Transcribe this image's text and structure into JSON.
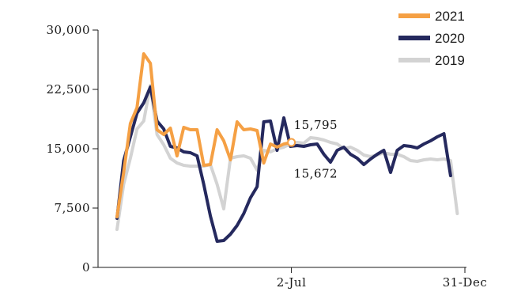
{
  "chart_data": {
    "type": "line",
    "title": "",
    "xlabel": "",
    "ylabel": "",
    "ylim": [
      0,
      30000
    ],
    "y_ticks": [
      {
        "value": 0,
        "label": "0"
      },
      {
        "value": 7500,
        "label": "7,500"
      },
      {
        "value": 15000,
        "label": "15,000"
      },
      {
        "value": 22500,
        "label": "22,500"
      },
      {
        "value": 30000,
        "label": "30,000"
      }
    ],
    "x_axis": {
      "unit": "day of year",
      "range": [
        1,
        366
      ]
    },
    "x_ticks": [
      {
        "value": 184,
        "label": "2-Jul"
      },
      {
        "value": 366,
        "label": "31-Dec"
      }
    ],
    "grid": false,
    "legend_placement": "top-right",
    "legend": [
      {
        "label": "2021",
        "color": "#F5A044"
      },
      {
        "label": "2020",
        "color": "#25295E"
      },
      {
        "label": "2019",
        "color": "#D3D3D3"
      }
    ],
    "series": [
      {
        "name": "2019",
        "color": "#D3D3D3",
        "points": [
          [
            1,
            4800
          ],
          [
            8,
            10500
          ],
          [
            15,
            13800
          ],
          [
            22,
            17500
          ],
          [
            29,
            18500
          ],
          [
            36,
            23000
          ],
          [
            43,
            16800
          ],
          [
            50,
            15500
          ],
          [
            57,
            13800
          ],
          [
            64,
            13200
          ],
          [
            71,
            12900
          ],
          [
            78,
            12800
          ],
          [
            85,
            12800
          ],
          [
            92,
            12800
          ],
          [
            99,
            13000
          ],
          [
            106,
            10500
          ],
          [
            113,
            7400
          ],
          [
            120,
            13800
          ],
          [
            127,
            14000
          ],
          [
            134,
            14100
          ],
          [
            141,
            13800
          ],
          [
            148,
            12300
          ],
          [
            155,
            14800
          ],
          [
            162,
            14600
          ],
          [
            169,
            15000
          ],
          [
            176,
            15200
          ],
          [
            183,
            15600
          ],
          [
            190,
            15800
          ],
          [
            197,
            15700
          ],
          [
            204,
            16400
          ],
          [
            211,
            16300
          ],
          [
            218,
            16100
          ],
          [
            225,
            15800
          ],
          [
            232,
            15600
          ],
          [
            239,
            15000
          ],
          [
            246,
            15200
          ],
          [
            253,
            14800
          ],
          [
            260,
            14200
          ],
          [
            267,
            14000
          ],
          [
            274,
            14200
          ],
          [
            281,
            14500
          ],
          [
            288,
            14300
          ],
          [
            295,
            14300
          ],
          [
            302,
            14000
          ],
          [
            309,
            13500
          ],
          [
            316,
            13400
          ],
          [
            323,
            13600
          ],
          [
            330,
            13700
          ],
          [
            337,
            13600
          ],
          [
            344,
            13700
          ],
          [
            351,
            13500
          ],
          [
            358,
            6800
          ]
        ]
      },
      {
        "name": "2020",
        "color": "#25295E",
        "points": [
          [
            1,
            6200
          ],
          [
            8,
            13500
          ],
          [
            15,
            16500
          ],
          [
            22,
            19500
          ],
          [
            29,
            20800
          ],
          [
            36,
            22800
          ],
          [
            43,
            18500
          ],
          [
            50,
            17500
          ],
          [
            57,
            15300
          ],
          [
            64,
            15100
          ],
          [
            71,
            14600
          ],
          [
            78,
            14500
          ],
          [
            85,
            14100
          ],
          [
            92,
            10500
          ],
          [
            99,
            6500
          ],
          [
            106,
            3300
          ],
          [
            113,
            3400
          ],
          [
            120,
            4200
          ],
          [
            127,
            5300
          ],
          [
            134,
            6800
          ],
          [
            141,
            8800
          ],
          [
            148,
            10200
          ],
          [
            155,
            18400
          ],
          [
            162,
            18500
          ],
          [
            169,
            14800
          ],
          [
            176,
            18900
          ],
          [
            183,
            15300
          ],
          [
            190,
            15400
          ],
          [
            197,
            15300
          ],
          [
            204,
            15500
          ],
          [
            211,
            15600
          ],
          [
            218,
            14300
          ],
          [
            225,
            13300
          ],
          [
            232,
            14800
          ],
          [
            239,
            15200
          ],
          [
            246,
            14300
          ],
          [
            253,
            13800
          ],
          [
            260,
            13000
          ],
          [
            267,
            13700
          ],
          [
            274,
            14300
          ],
          [
            281,
            14800
          ],
          [
            288,
            12000
          ],
          [
            295,
            14800
          ],
          [
            302,
            15400
          ],
          [
            309,
            15300
          ],
          [
            316,
            15100
          ],
          [
            323,
            15600
          ],
          [
            330,
            16000
          ],
          [
            337,
            16500
          ],
          [
            344,
            16900
          ],
          [
            351,
            11600
          ]
        ]
      },
      {
        "name": "2021",
        "color": "#F5A044",
        "points": [
          [
            1,
            6400
          ],
          [
            8,
            12000
          ],
          [
            15,
            18200
          ],
          [
            22,
            20200
          ],
          [
            29,
            27000
          ],
          [
            36,
            25800
          ],
          [
            43,
            17400
          ],
          [
            50,
            16800
          ],
          [
            57,
            17600
          ],
          [
            64,
            14100
          ],
          [
            71,
            17700
          ],
          [
            78,
            17400
          ],
          [
            85,
            17400
          ],
          [
            92,
            12900
          ],
          [
            99,
            13000
          ],
          [
            106,
            17400
          ],
          [
            113,
            16000
          ],
          [
            120,
            13600
          ],
          [
            127,
            18400
          ],
          [
            134,
            17400
          ],
          [
            141,
            17500
          ],
          [
            148,
            17300
          ],
          [
            155,
            13200
          ],
          [
            162,
            15600
          ],
          [
            169,
            15200
          ],
          [
            176,
            15600
          ],
          [
            184,
            15795
          ]
        ]
      }
    ],
    "annotations": [
      {
        "label": "15,795",
        "x": 184,
        "y": 15795,
        "series": "2021",
        "marker": true
      },
      {
        "label": "15,672",
        "x": 184,
        "y": 15672,
        "series": "2020",
        "marker": false
      }
    ]
  }
}
